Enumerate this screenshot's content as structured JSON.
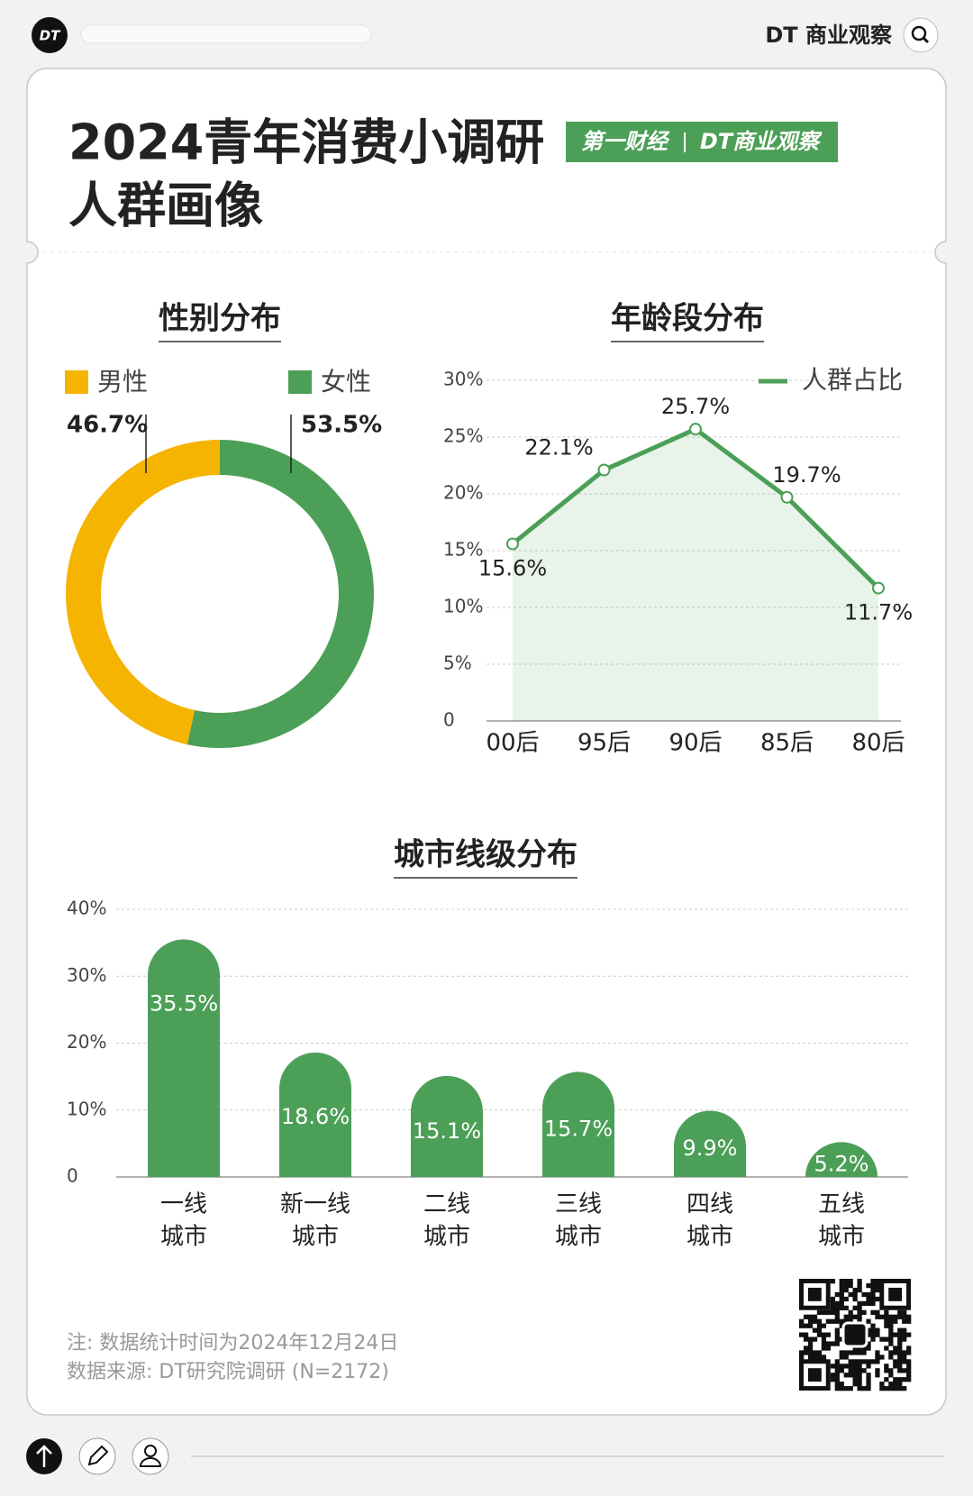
{
  "header": {
    "avatar": "DT",
    "brand": "DT 商业观察",
    "title_lines": [
      "2024青年消费小调研",
      "人群画像"
    ],
    "partner_logos": [
      "第一财经",
      "DT商业观察"
    ]
  },
  "chart_data": [
    {
      "type": "pie",
      "title": "性别分布",
      "categories": [
        "男性",
        "女性"
      ],
      "values": [
        46.7,
        53.5
      ],
      "value_labels": [
        "46.7%",
        "53.5%"
      ],
      "colors": [
        "#f5b400",
        "#4c9f57"
      ]
    },
    {
      "type": "line",
      "title": "年龄段分布",
      "categories": [
        "00后",
        "95后",
        "90后",
        "85后",
        "80后"
      ],
      "series": [
        {
          "name": "人群占比",
          "color": "#4c9f57",
          "values": [
            15.6,
            22.1,
            25.7,
            19.7,
            11.7
          ],
          "value_labels": [
            "15.6%",
            "22.1%",
            "25.7%",
            "19.7%",
            "11.7%"
          ]
        }
      ],
      "ylim": [
        0,
        30
      ],
      "yticks": [
        0,
        {
          "value": 5,
          "label": "5%"
        },
        {
          "value": 10,
          "label": "10%"
        },
        {
          "value": 15,
          "label": "15%"
        },
        {
          "value": 20,
          "label": "20%"
        },
        {
          "value": 25,
          "label": "25%"
        },
        {
          "value": 30,
          "label": "30%"
        }
      ],
      "grid": true,
      "legend": "top-right"
    },
    {
      "type": "bar",
      "title": "城市线级分布",
      "categories": [
        [
          "一线",
          "城市"
        ],
        [
          "新一线",
          "城市"
        ],
        [
          "二线",
          "城市"
        ],
        [
          "三线",
          "城市"
        ],
        [
          "四线",
          "城市"
        ],
        [
          "五线",
          "城市"
        ]
      ],
      "values": [
        35.5,
        18.6,
        15.1,
        15.7,
        9.9,
        5.2
      ],
      "value_labels": [
        "35.5%",
        "18.6%",
        "15.1%",
        "15.7%",
        "9.9%",
        "5.2%"
      ],
      "color": "#4c9f57",
      "ylim": [
        0,
        40
      ],
      "yticks": [
        0,
        {
          "value": 10,
          "label": "10%"
        },
        {
          "value": 20,
          "label": "20%"
        },
        {
          "value": 30,
          "label": "30%"
        },
        {
          "value": 40,
          "label": "40%"
        }
      ],
      "grid": true
    }
  ],
  "notes": [
    "注: 数据统计时间为2024年12月24日",
    "数据来源: DT研究院调研 (N=2172)"
  ]
}
